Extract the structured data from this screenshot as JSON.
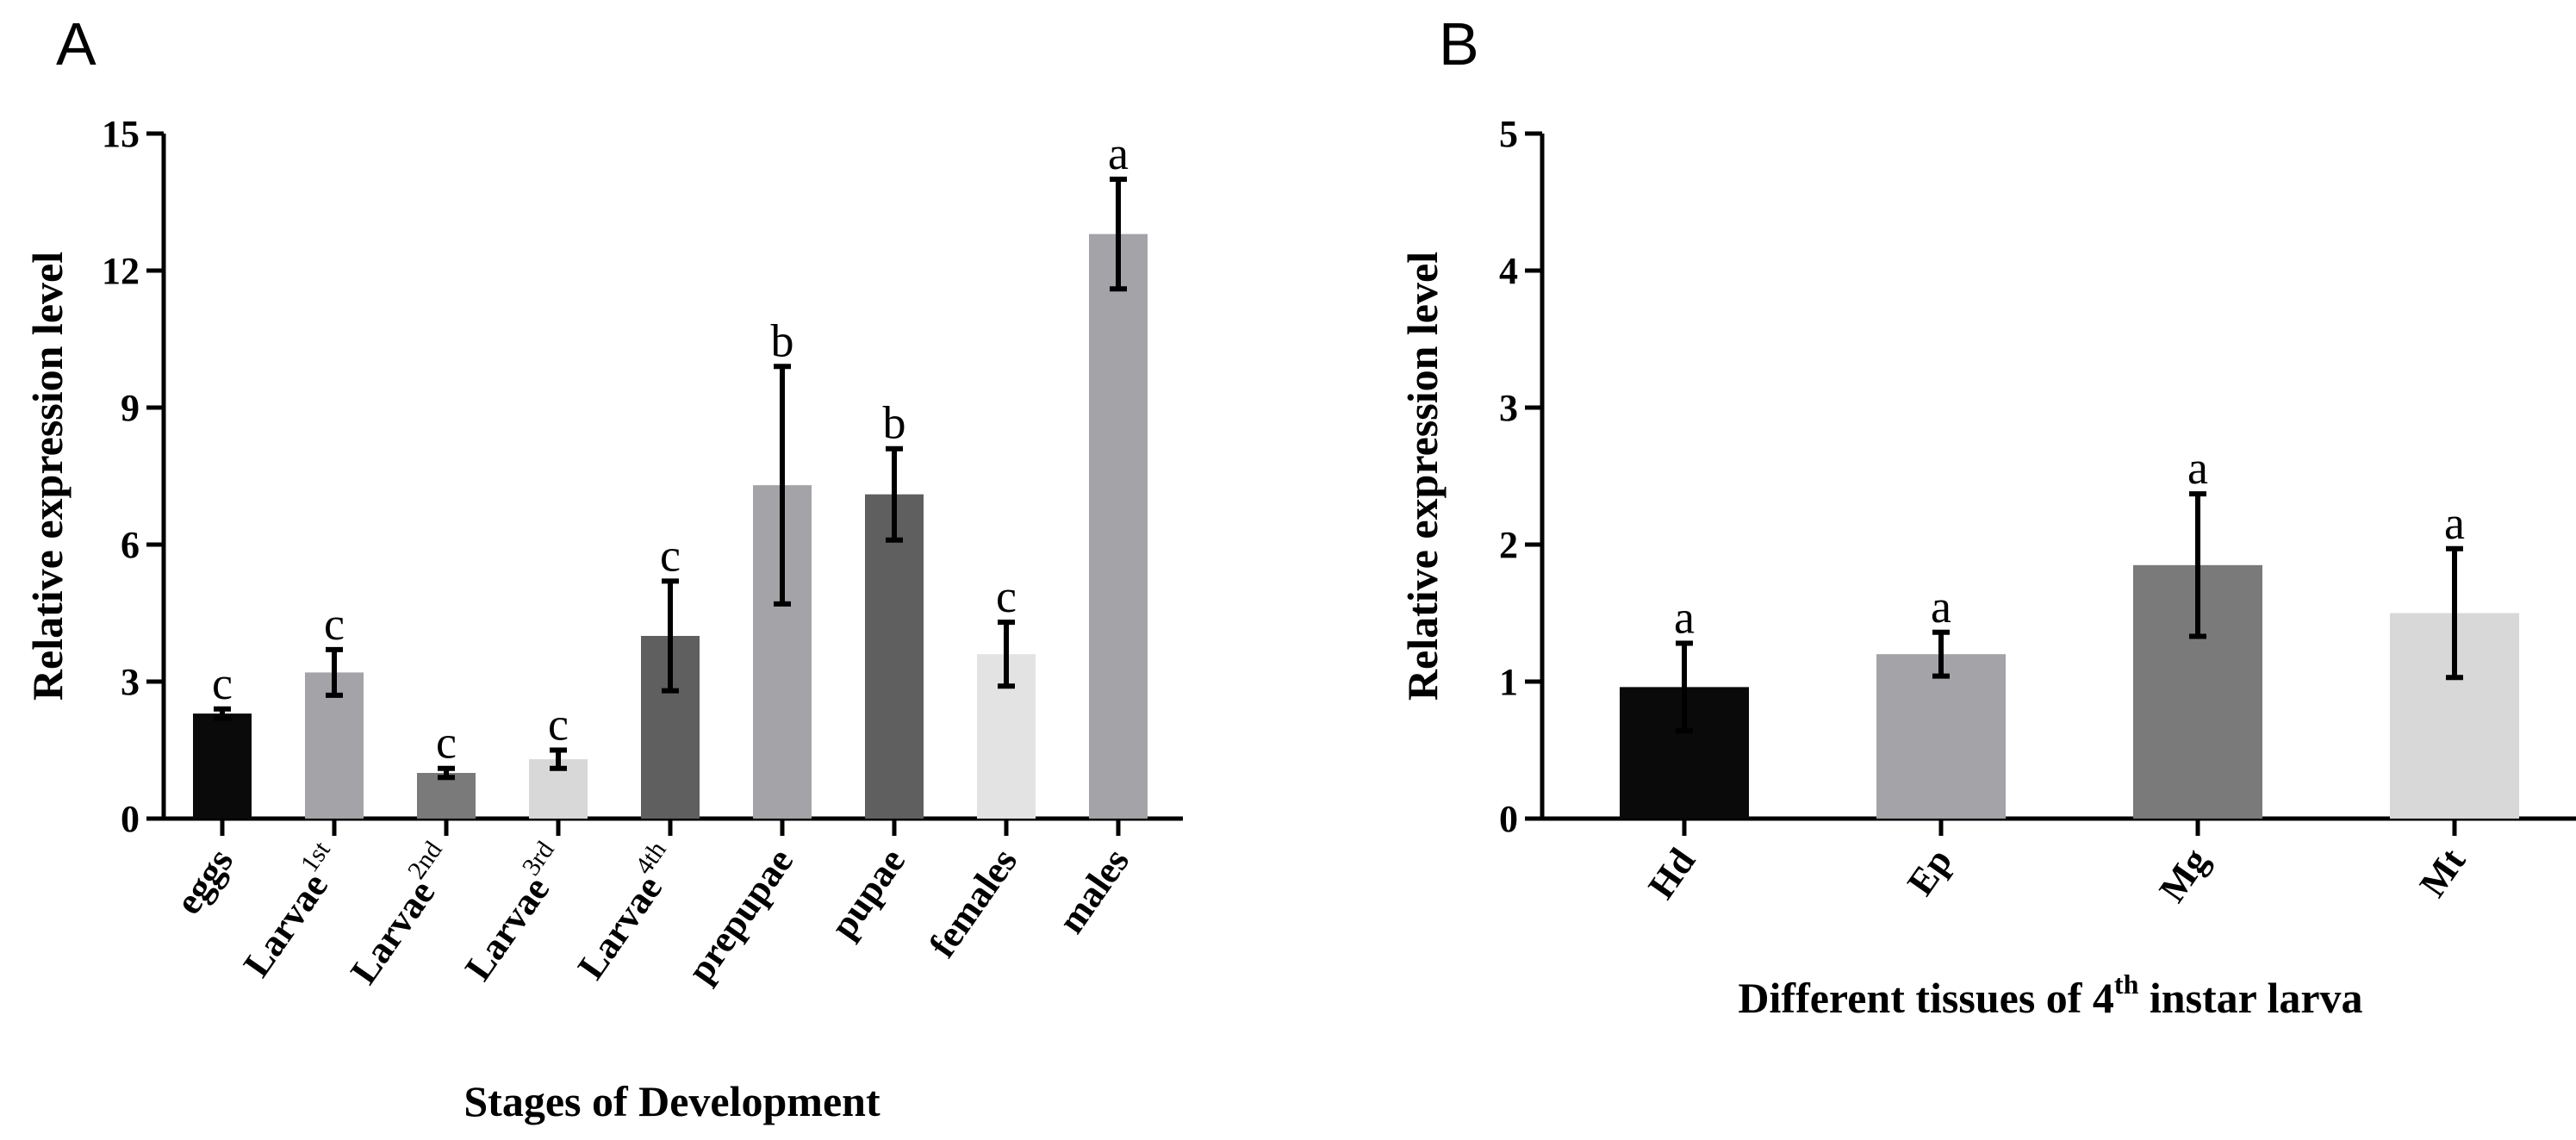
{
  "chart_data": [
    {
      "panel": "A",
      "type": "bar",
      "title": "",
      "xlabel": "Stages of Development",
      "ylabel": "Relative expression level",
      "ylim": [
        0,
        15
      ],
      "yticks": [
        0,
        3,
        6,
        9,
        12,
        15
      ],
      "grid": false,
      "categories": [
        {
          "label": "eggs",
          "sup": ""
        },
        {
          "label": "Larvae",
          "sup": "1st"
        },
        {
          "label": "Larvae",
          "sup": "2nd"
        },
        {
          "label": "Larvae",
          "sup": "3rd"
        },
        {
          "label": "Larvae",
          "sup": "4th"
        },
        {
          "label": "prepupae",
          "sup": ""
        },
        {
          "label": "pupae",
          "sup": ""
        },
        {
          "label": "females",
          "sup": ""
        },
        {
          "label": "males",
          "sup": ""
        }
      ],
      "values": [
        2.3,
        3.2,
        1.0,
        1.3,
        4.0,
        7.3,
        7.1,
        3.6,
        12.8
      ],
      "errors": [
        0.1,
        0.5,
        0.1,
        0.2,
        1.2,
        2.6,
        1.0,
        0.7,
        1.2
      ],
      "significance": [
        "c",
        "c",
        "c",
        "c",
        "c",
        "b",
        "b",
        "c",
        "a"
      ],
      "colors": [
        "#0a0a0a",
        "#a3a3a8",
        "#7a7a7a",
        "#d8d8d8",
        "#5f5f5f",
        "#a3a3a8",
        "#5f5f5f",
        "#e3e3e3",
        "#a3a3a8"
      ]
    },
    {
      "panel": "B",
      "type": "bar",
      "title": "",
      "xlabel": "Different tissues of 4",
      "xlabel_sup": "th",
      "xlabel_tail": " instar larva",
      "ylabel": "Relative expression level",
      "ylim": [
        0,
        5
      ],
      "yticks": [
        0,
        1,
        2,
        3,
        4,
        5
      ],
      "grid": false,
      "categories": [
        {
          "label": "Hd",
          "sup": ""
        },
        {
          "label": "Ep",
          "sup": ""
        },
        {
          "label": "Mg",
          "sup": ""
        },
        {
          "label": "Mt",
          "sup": ""
        }
      ],
      "values": [
        0.96,
        1.2,
        1.85,
        1.5
      ],
      "errors": [
        0.32,
        0.16,
        0.52,
        0.47
      ],
      "significance": [
        "a",
        "a",
        "a",
        "a"
      ],
      "colors": [
        "#0a0a0a",
        "#a3a3a8",
        "#7a7a7a",
        "#d8d8d8"
      ]
    }
  ]
}
